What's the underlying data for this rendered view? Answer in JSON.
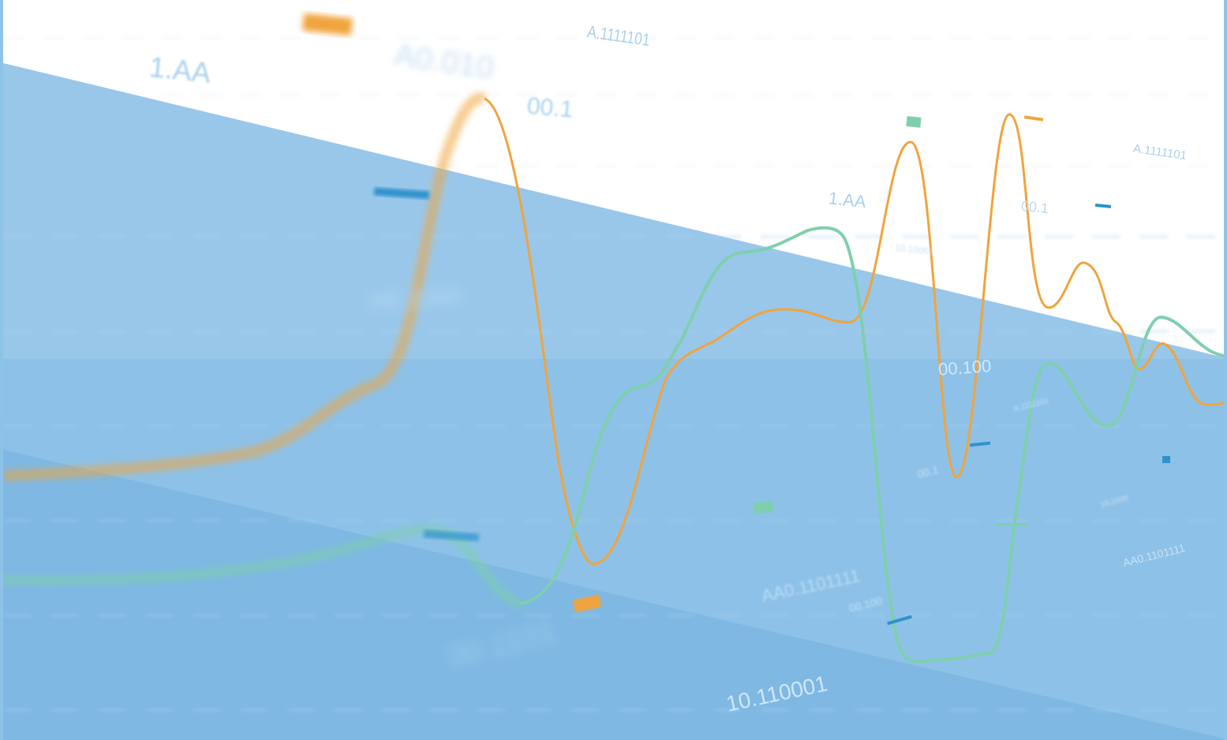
{
  "colors": {
    "background": "#ffffff",
    "band_top": "#99c7ea",
    "band_mid": "#8dc1e8",
    "band_low": "#7eb8e3",
    "series_orange": "#f0a43c",
    "series_green": "#7fcfae",
    "accent_blue": "#2e93cc",
    "label_blue": "#a9d0ee",
    "label_white": "#e6f2fb"
  },
  "labels": {
    "top_left": "1.AA",
    "top_left_blurred": "A0.010",
    "top_mid": "00.1",
    "top_center": "A.1111101",
    "right_small_1": "A.1111101",
    "mid_1aa": "1.AA",
    "mid_001": "00.1",
    "mid_10100": "10.10001",
    "band_left": "H0.1000",
    "band_00100": "00.100",
    "band_aa0_center": "AA0.1101111",
    "band_aa0_right": "AA0.1101111",
    "band_001_small": "00.1",
    "band_bottom_left": "00.1101",
    "band_bottom_center": "10.110001",
    "band_small_100": "00.100",
    "band_small_a": "A.1111101",
    "band_small_tiny": "10.1000"
  }
}
